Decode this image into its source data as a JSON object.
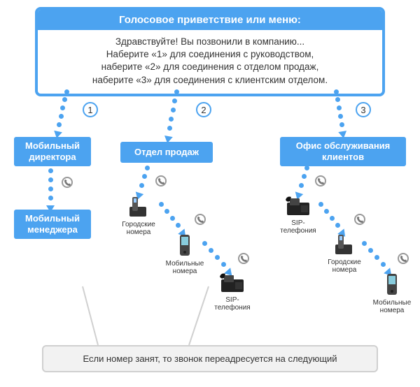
{
  "colors": {
    "primary": "#4ca3f0",
    "white": "#ffffff",
    "text": "#333333",
    "footer_bg": "#f2f2f2",
    "footer_border": "#d0d0d0",
    "icon_gray": "#999999"
  },
  "typography": {
    "title_fontsize": 15,
    "body_fontsize": 13.5,
    "branch_fontsize": 13,
    "endpoint_fontsize": 10,
    "footer_fontsize": 13
  },
  "greeting": {
    "title": "Голосовое приветствие или меню:",
    "line1": "Здравствуйте! Вы позвонили в компанию...",
    "line2": "Наберите «1» для соединения с руководством,",
    "line3": "наберите «2» для соединения с отделом продаж,",
    "line4": "наберите «3» для соединения с клиентским отделом."
  },
  "branches": {
    "b1": {
      "num": "1",
      "label": "Мобильный директора",
      "sub_label": "Мобильный менеджера"
    },
    "b2": {
      "num": "2",
      "label": "Отдел продаж",
      "endpoints": [
        {
          "label": "Городские номера",
          "type": "cordless"
        },
        {
          "label": "Мобильные номера",
          "type": "mobile"
        },
        {
          "label": "SIP-телефония",
          "type": "desk"
        }
      ]
    },
    "b3": {
      "num": "3",
      "label": "Офис обслуживания клиентов",
      "endpoints": [
        {
          "label": "SIP-телефония",
          "type": "desk"
        },
        {
          "label": "Городские номера",
          "type": "cordless"
        },
        {
          "label": "Мобильные номера",
          "type": "mobile"
        }
      ]
    }
  },
  "footer": {
    "text": "Если номер занят, то звонок переадресуется на следующий"
  },
  "diagram": {
    "type": "flowchart",
    "arrow_style": "dotted",
    "dot_size": 7,
    "dot_spacing": 11
  }
}
